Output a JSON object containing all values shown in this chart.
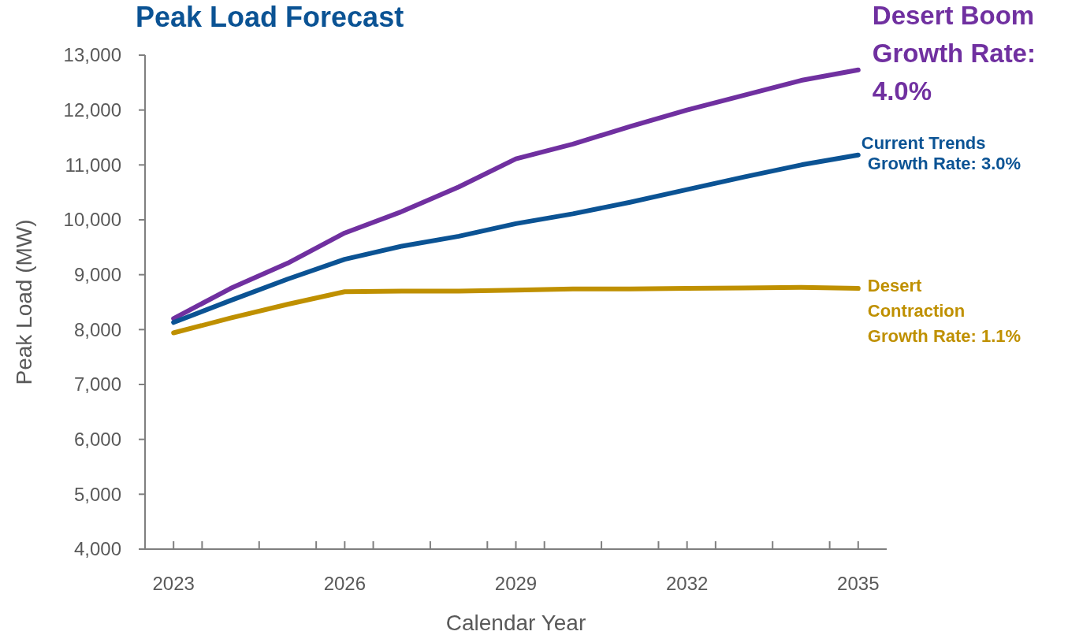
{
  "chart_data": {
    "type": "line",
    "title": "Peak Load Forecast",
    "xlabel": "Calendar Year",
    "ylabel": "Peak Load (MW)",
    "x": [
      2023,
      2024,
      2025,
      2026,
      2027,
      2028,
      2029,
      2030,
      2031,
      2032,
      2033,
      2034,
      2035
    ],
    "xlim": [
      2022.5,
      2035.5
    ],
    "xticks": [
      2023,
      {
        "value": 2023.5,
        "label": null
      },
      {
        "value": 2024.5,
        "label": null
      },
      {
        "value": 2025.5,
        "label": null
      },
      2026,
      {
        "value": 2026.5,
        "label": null
      },
      {
        "value": 2027.5,
        "label": null
      },
      {
        "value": 2028.5,
        "label": null
      },
      2029,
      {
        "value": 2029.5,
        "label": null
      },
      {
        "value": 2030.5,
        "label": null
      },
      {
        "value": 2031.5,
        "label": null
      },
      2032,
      {
        "value": 2032.5,
        "label": null
      },
      {
        "value": 2033.5,
        "label": null
      },
      {
        "value": 2034.5,
        "label": null
      },
      2035
    ],
    "ylim": [
      4000,
      13000
    ],
    "yticks": [
      {
        "value": 4000,
        "label": "4,000"
      },
      {
        "value": 5000,
        "label": "5,000"
      },
      {
        "value": 6000,
        "label": "6,000"
      },
      {
        "value": 7000,
        "label": "7,000"
      },
      {
        "value": 8000,
        "label": "8,000"
      },
      {
        "value": 9000,
        "label": "9,000"
      },
      {
        "value": 10000,
        "label": "10,000"
      },
      {
        "value": 11000,
        "label": "11,000"
      },
      {
        "value": 12000,
        "label": "12,000"
      },
      {
        "value": 13000,
        "label": "13,000"
      }
    ],
    "grid": false,
    "marker": "none",
    "line_style": "solid",
    "series": [
      {
        "name": "Desert Boom\nGrowth Rate:\n4.0%",
        "color": "#7030a0",
        "values": [
          8200,
          8750,
          9210,
          9760,
          10150,
          10600,
          11110,
          11380,
          11700,
          12000,
          12270,
          12540,
          12730
        ]
      },
      {
        "name": "Current Trends\nGrowth Rate: 3.0%",
        "color": "#0b5394",
        "values": [
          8130,
          8530,
          8920,
          9280,
          9520,
          9700,
          9930,
          10110,
          10320,
          10550,
          10780,
          11000,
          11180
        ]
      },
      {
        "name": "Desert\nContraction\nGrowth Rate: 1.1%",
        "color": "#bf9000",
        "values": [
          7940,
          8210,
          8460,
          8690,
          8700,
          8700,
          8720,
          8740,
          8740,
          8750,
          8760,
          8770,
          8750
        ]
      }
    ]
  }
}
